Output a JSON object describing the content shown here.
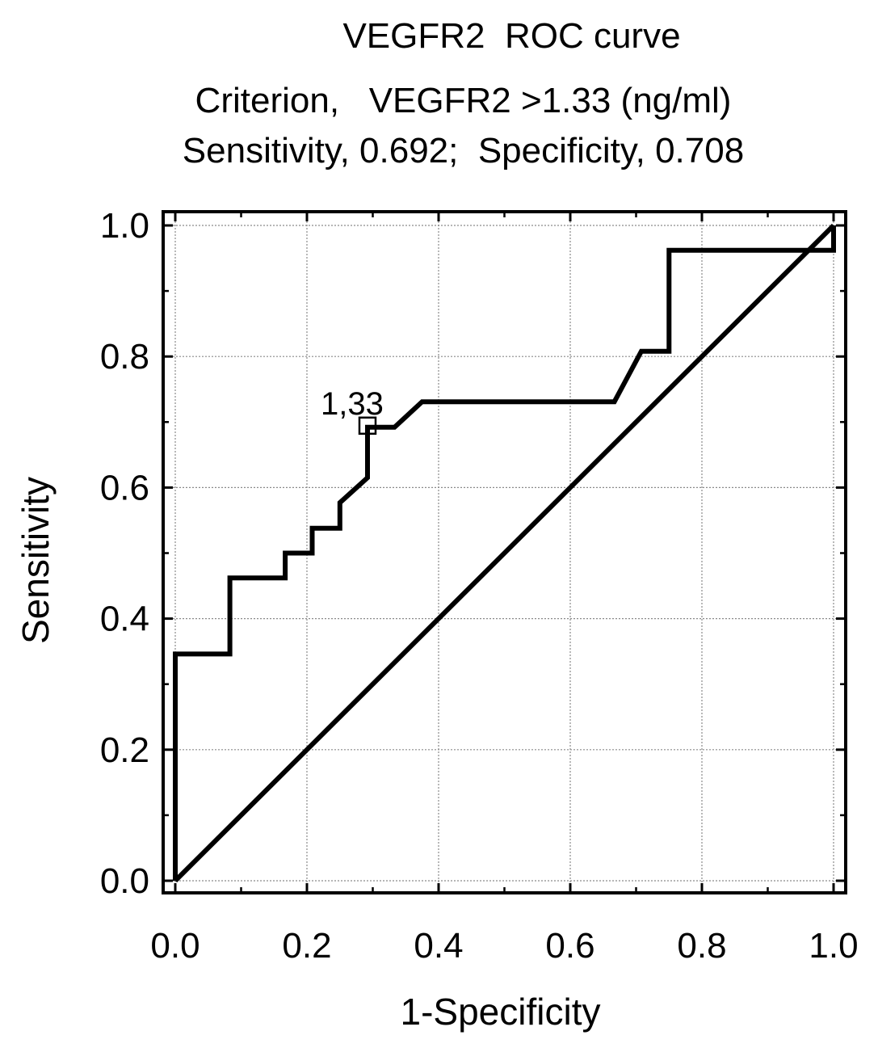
{
  "chart_data": {
    "type": "line",
    "title": "VEGFR2  ROC curve",
    "subtitle_lines": [
      "Criterion,   VEGFR2 >1.33 (ng/ml)",
      "Sensitivity, 0.692;  Specificity, 0.708"
    ],
    "xlabel": "1-Specificity",
    "ylabel": "Sensitivity",
    "xlim": [
      0,
      1
    ],
    "ylim": [
      0,
      1
    ],
    "x_ticks": [
      "0.0",
      "0.2",
      "0.4",
      "0.6",
      "0.8",
      "1.0"
    ],
    "y_ticks": [
      "0.0",
      "0.2",
      "0.4",
      "0.6",
      "0.8",
      "1.0"
    ],
    "grid": true,
    "series": [
      {
        "x": [
          0,
          0,
          0.083,
          0.083,
          0.167,
          0.167,
          0.208,
          0.208,
          0.25,
          0.25,
          0.292,
          0.292,
          0.333,
          0.375,
          0.667,
          0.708,
          0.75,
          0.75,
          1.0,
          1.0
        ],
        "y": [
          0,
          0.346,
          0.346,
          0.462,
          0.462,
          0.5,
          0.5,
          0.538,
          0.538,
          0.577,
          0.615,
          0.692,
          0.692,
          0.731,
          0.731,
          0.808,
          0.808,
          0.962,
          0.962,
          1.0
        ]
      },
      {
        "x": [
          0,
          1
        ],
        "y": [
          0,
          1
        ]
      }
    ],
    "annotations": [
      {
        "x": 0.292,
        "y": 0.692,
        "text": "1,33",
        "marker": "square"
      }
    ]
  }
}
